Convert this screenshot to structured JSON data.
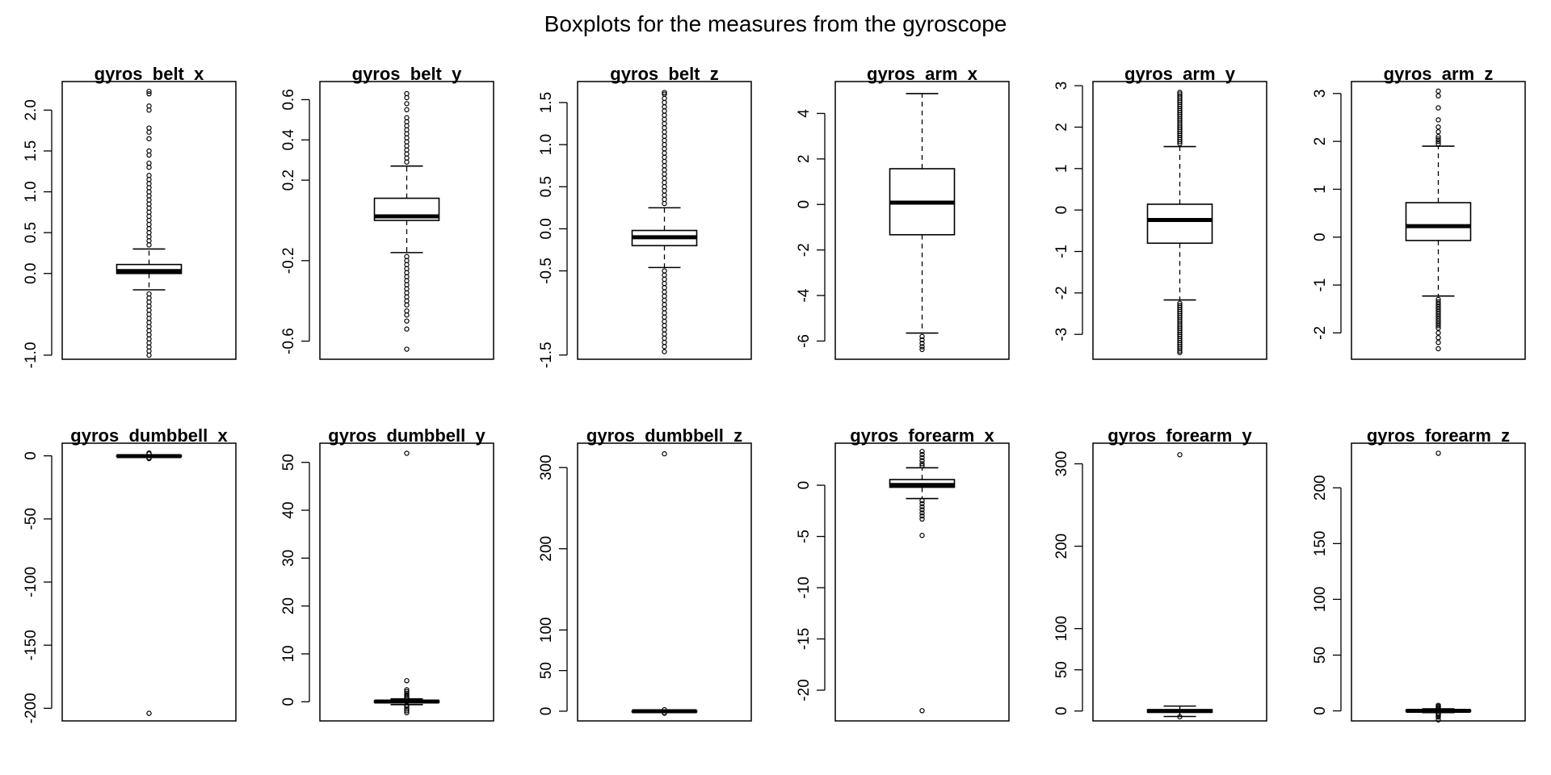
{
  "figure": {
    "title": "Boxplots for the measures from the gyroscope"
  },
  "chart_data": [
    {
      "type": "box",
      "title": "gyros_belt_x",
      "ylim": [
        -1.05,
        2.35
      ],
      "yticks": [
        -1.0,
        0.0,
        0.5,
        1.0,
        1.5,
        2.0
      ],
      "ytick_labels": [
        "-1.0",
        "0.0",
        "0.5",
        "1.0",
        "1.5",
        "2.0"
      ],
      "box": {
        "min": -0.2,
        "q1": 0.0,
        "median": 0.03,
        "q3": 0.11,
        "max": 0.3
      },
      "outliers": [
        -1.0,
        -0.95,
        -0.9,
        -0.85,
        -0.8,
        -0.75,
        -0.7,
        -0.65,
        -0.6,
        -0.55,
        -0.5,
        -0.45,
        -0.4,
        -0.35,
        -0.3,
        -0.25,
        0.35,
        0.4,
        0.45,
        0.5,
        0.55,
        0.6,
        0.65,
        0.7,
        0.75,
        0.8,
        0.85,
        0.9,
        0.95,
        1.0,
        1.05,
        1.1,
        1.15,
        1.2,
        1.3,
        1.35,
        1.45,
        1.5,
        1.65,
        1.73,
        1.78,
        2.0,
        2.05,
        2.2,
        2.23
      ]
    },
    {
      "type": "box",
      "title": "gyros_belt_y",
      "ylim": [
        -0.69,
        0.69
      ],
      "yticks": [
        -0.6,
        -0.2,
        0.2,
        0.4,
        0.6
      ],
      "ytick_labels": [
        "-0.6",
        "-0.2",
        "0.2",
        "0.4",
        "0.6"
      ],
      "box": {
        "min": -0.16,
        "q1": 0.0,
        "median": 0.02,
        "q3": 0.11,
        "max": 0.27
      },
      "outliers": [
        -0.64,
        -0.54,
        -0.5,
        -0.47,
        -0.45,
        -0.42,
        -0.4,
        -0.38,
        -0.36,
        -0.34,
        -0.32,
        -0.3,
        -0.28,
        -0.26,
        -0.24,
        -0.22,
        -0.2,
        -0.18,
        0.29,
        0.31,
        0.33,
        0.35,
        0.37,
        0.39,
        0.41,
        0.43,
        0.45,
        0.47,
        0.49,
        0.51,
        0.55,
        0.58,
        0.61,
        0.63
      ]
    },
    {
      "type": "box",
      "title": "gyros_belt_z",
      "ylim": [
        -1.55,
        1.75
      ],
      "yticks": [
        -1.5,
        -0.5,
        0.0,
        0.5,
        1.0,
        1.5
      ],
      "ytick_labels": [
        "-1.5",
        "-0.5",
        "0.0",
        "0.5",
        "1.0",
        "1.5"
      ],
      "box": {
        "min": -0.46,
        "q1": -0.2,
        "median": -0.1,
        "q3": -0.02,
        "max": 0.25
      },
      "outliers": [
        -1.46,
        -1.4,
        -1.35,
        -1.3,
        -1.25,
        -1.2,
        -1.15,
        -1.1,
        -1.05,
        -1.0,
        -0.95,
        -0.9,
        -0.85,
        -0.8,
        -0.75,
        -0.7,
        -0.65,
        -0.6,
        -0.55,
        -0.5,
        0.3,
        0.35,
        0.4,
        0.45,
        0.5,
        0.55,
        0.6,
        0.65,
        0.7,
        0.75,
        0.8,
        0.85,
        0.9,
        0.95,
        1.0,
        1.05,
        1.1,
        1.15,
        1.2,
        1.25,
        1.3,
        1.35,
        1.4,
        1.45,
        1.5,
        1.55,
        1.6,
        1.62
      ]
    },
    {
      "type": "box",
      "title": "gyros_arm_x",
      "ylim": [
        -6.8,
        5.4
      ],
      "yticks": [
        -6,
        -4,
        -2,
        0,
        2,
        4
      ],
      "ytick_labels": [
        "-6",
        "-4",
        "-2",
        "0",
        "2",
        "4"
      ],
      "box": {
        "min": -5.65,
        "q1": -1.33,
        "median": 0.08,
        "q3": 1.57,
        "max": 4.87
      },
      "outliers": [
        -5.8,
        -5.95,
        -6.1,
        -6.25,
        -6.37
      ]
    },
    {
      "type": "box",
      "title": "gyros_arm_y",
      "ylim": [
        -3.6,
        3.1
      ],
      "yticks": [
        -3,
        -2,
        -1,
        0,
        1,
        2,
        3
      ],
      "ytick_labels": [
        "-3",
        "-2",
        "-1",
        "0",
        "1",
        "2",
        "3"
      ],
      "box": {
        "min": -2.17,
        "q1": -0.8,
        "median": -0.24,
        "q3": 0.14,
        "max": 1.53
      },
      "outliers": [
        -3.44,
        -3.4,
        -3.35,
        -3.3,
        -3.25,
        -3.2,
        -3.15,
        -3.1,
        -3.05,
        -3.0,
        -2.95,
        -2.9,
        -2.85,
        -2.8,
        -2.75,
        -2.7,
        -2.65,
        -2.6,
        -2.55,
        -2.5,
        -2.45,
        -2.4,
        -2.35,
        -2.3,
        -2.25,
        1.6,
        1.65,
        1.7,
        1.75,
        1.8,
        1.85,
        1.9,
        1.95,
        2.0,
        2.05,
        2.1,
        2.15,
        2.2,
        2.25,
        2.3,
        2.35,
        2.4,
        2.45,
        2.5,
        2.55,
        2.6,
        2.65,
        2.7,
        2.75,
        2.8,
        2.84
      ]
    },
    {
      "type": "box",
      "title": "gyros_arm_z",
      "ylim": [
        -2.55,
        3.25
      ],
      "yticks": [
        -2,
        -1,
        0,
        1,
        2,
        3
      ],
      "ytick_labels": [
        "-2",
        "-1",
        "0",
        "1",
        "2",
        "3"
      ],
      "box": {
        "min": -1.23,
        "q1": -0.07,
        "median": 0.23,
        "q3": 0.72,
        "max": 1.9
      },
      "outliers": [
        -2.33,
        -2.2,
        -2.1,
        -2.0,
        -1.9,
        -1.85,
        -1.8,
        -1.75,
        -1.7,
        -1.65,
        -1.6,
        -1.55,
        -1.5,
        -1.45,
        -1.4,
        -1.35,
        -1.3,
        1.95,
        2.0,
        2.05,
        2.1,
        2.2,
        2.3,
        2.45,
        2.7,
        2.95,
        3.05
      ]
    },
    {
      "type": "box",
      "title": "gyros_dumbbell_x",
      "ylim": [
        -210,
        10
      ],
      "yticks": [
        -200,
        -150,
        -100,
        -50,
        0
      ],
      "ytick_labels": [
        "-200",
        "-150",
        "-100",
        "-50",
        "0"
      ],
      "box": {
        "min": -0.8,
        "q1": -0.4,
        "median": -0.2,
        "q3": 0.2,
        "max": 0.8
      },
      "outliers": [
        -204,
        -2.2,
        -1.5,
        1.5,
        2.2
      ]
    },
    {
      "type": "box",
      "title": "gyros_dumbbell_y",
      "ylim": [
        -4,
        54
      ],
      "yticks": [
        0,
        10,
        20,
        30,
        40,
        50
      ],
      "ytick_labels": [
        "0",
        "10",
        "20",
        "30",
        "40",
        "50"
      ],
      "box": {
        "min": -0.6,
        "q1": -0.1,
        "median": 0.05,
        "q3": 0.2,
        "max": 0.6
      },
      "outliers": [
        -2.3,
        -1.9,
        -1.5,
        -1.1,
        -0.8,
        0.8,
        1.1,
        1.4,
        1.7,
        2.1,
        2.5,
        4.4,
        51.9
      ]
    },
    {
      "type": "box",
      "title": "gyros_dumbbell_z",
      "ylim": [
        -12,
        330
      ],
      "yticks": [
        0,
        50,
        100,
        200,
        300
      ],
      "ytick_labels": [
        "0",
        "50",
        "100",
        "200",
        "300"
      ],
      "box": {
        "min": -1.0,
        "q1": -0.3,
        "median": -0.1,
        "q3": 0.1,
        "max": 1.0
      },
      "outliers": [
        -2.5,
        -1.8,
        1.8,
        317
      ]
    },
    {
      "type": "box",
      "title": "gyros_forearm_x",
      "ylim": [
        -23,
        4.1
      ],
      "yticks": [
        -20,
        -15,
        -10,
        -5,
        0
      ],
      "ytick_labels": [
        "-20",
        "-15",
        "-10",
        "-5",
        "0"
      ],
      "box": {
        "min": -1.3,
        "q1": -0.2,
        "median": 0.02,
        "q3": 0.55,
        "max": 1.7
      },
      "outliers": [
        -22.0,
        -4.9,
        -3.3,
        -3.0,
        -2.7,
        -2.4,
        -2.1,
        -1.8,
        -1.5,
        1.9,
        2.1,
        2.4,
        2.7,
        3.0,
        3.3
      ]
    },
    {
      "type": "box",
      "title": "gyros_forearm_y",
      "ylim": [
        -12,
        325
      ],
      "yticks": [
        0,
        50,
        100,
        200,
        300
      ],
      "ytick_labels": [
        "0",
        "50",
        "100",
        "200",
        "300"
      ],
      "box": {
        "min": -6.6,
        "q1": -1.5,
        "median": 0.03,
        "q3": 1.6,
        "max": 6.0
      },
      "outliers": [
        -7.0,
        311
      ]
    },
    {
      "type": "box",
      "title": "gyros_forearm_z",
      "ylim": [
        -9,
        240
      ],
      "yticks": [
        0,
        50,
        100,
        150,
        200
      ],
      "ytick_labels": [
        "0",
        "50",
        "100",
        "150",
        "200"
      ],
      "box": {
        "min": -1.5,
        "q1": -0.2,
        "median": 0.08,
        "q3": 0.5,
        "max": 1.8
      },
      "outliers": [
        -8.1,
        -5.5,
        -4.0,
        -3.0,
        -2.2,
        2.3,
        3.0,
        4.0,
        5.0,
        231
      ]
    }
  ]
}
